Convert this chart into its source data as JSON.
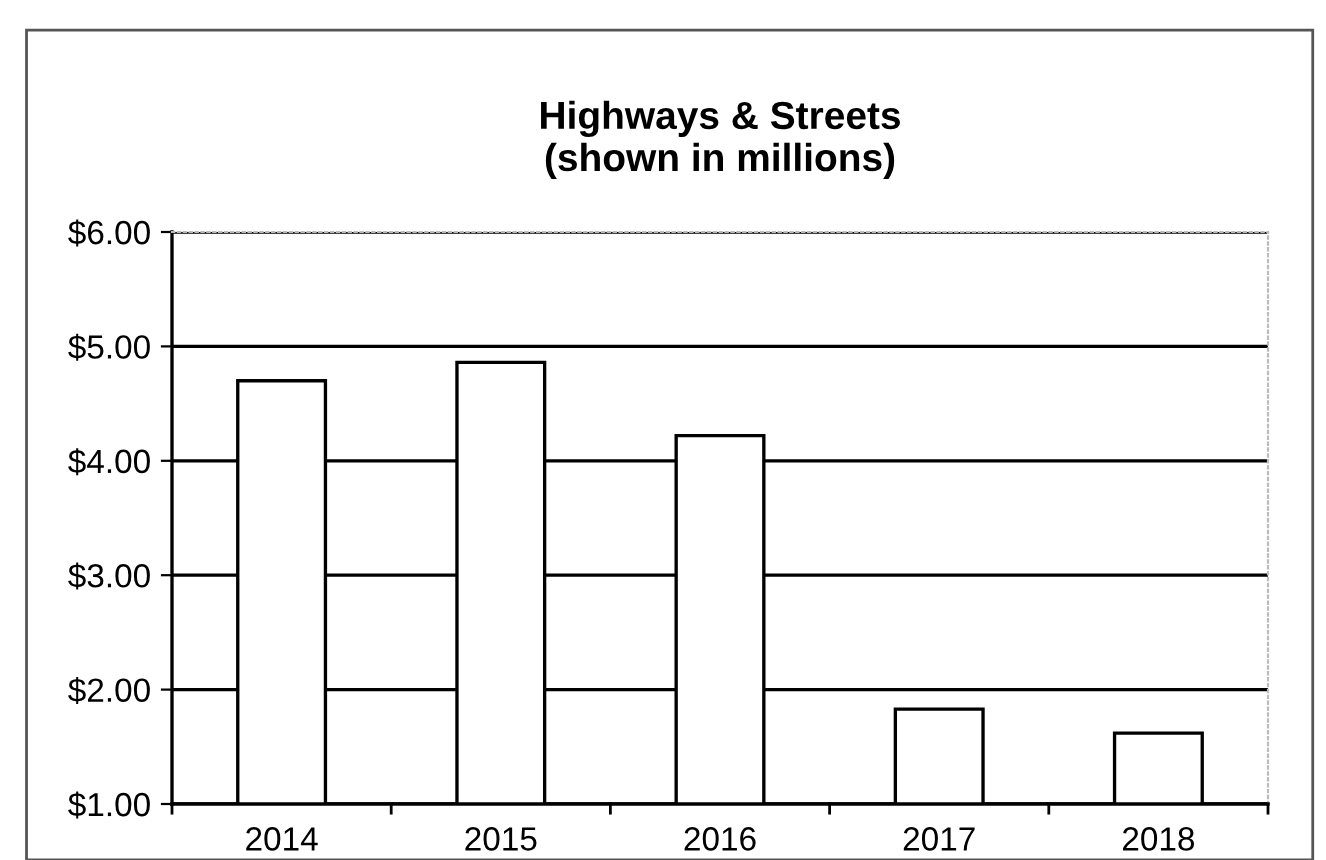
{
  "chart_data": {
    "type": "bar",
    "title": "Highways & Streets\n(shown in millions)",
    "categories": [
      "2014",
      "2015",
      "2016",
      "2017",
      "2018"
    ],
    "values": [
      4.7,
      4.86,
      4.22,
      1.83,
      1.62
    ],
    "color": "#ffffff",
    "ylim": [
      1,
      6
    ],
    "yticks": [
      {
        "value": 1,
        "label": "$1.00"
      },
      {
        "value": 2,
        "label": "$2.00"
      },
      {
        "value": 3,
        "label": "$3.00"
      },
      {
        "value": 4,
        "label": "$4.00"
      },
      {
        "value": 5,
        "label": "$5.00"
      },
      {
        "value": 6,
        "label": "$6.00"
      }
    ],
    "grid": "y"
  }
}
